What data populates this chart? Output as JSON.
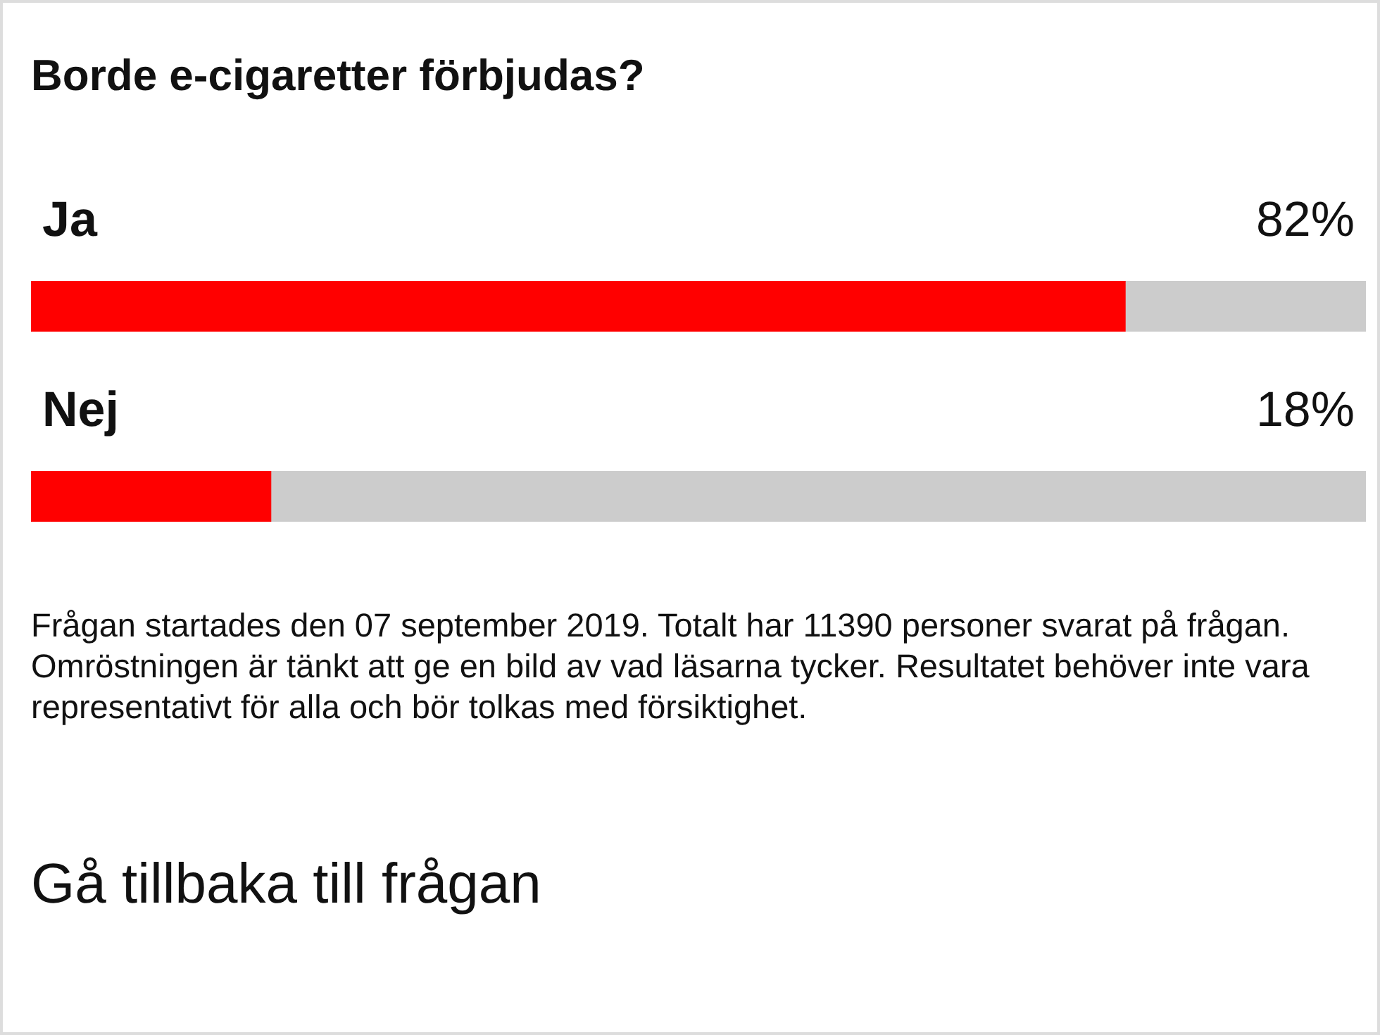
{
  "chart_data": {
    "type": "bar",
    "orientation": "horizontal",
    "title": "Borde e-cigaretter förbjudas?",
    "categories": [
      "Ja",
      "Nej"
    ],
    "values": [
      82,
      18
    ],
    "color": "#ff0000",
    "value_labels": [
      "82%",
      "18%"
    ],
    "xlim": [
      0,
      100
    ],
    "tick_labels": "y",
    "annotations": [
      "Frågan startades den 07 september 2019. Totalt har 11390 personer svarat på frågan. Omröstningen är tänkt att ge en bild av vad läsarna tycker. Resultatet behöver inte vara representativt för alla och bör tolkas med försiktighet.",
      "Gå tillbaka till frågan"
    ]
  }
}
